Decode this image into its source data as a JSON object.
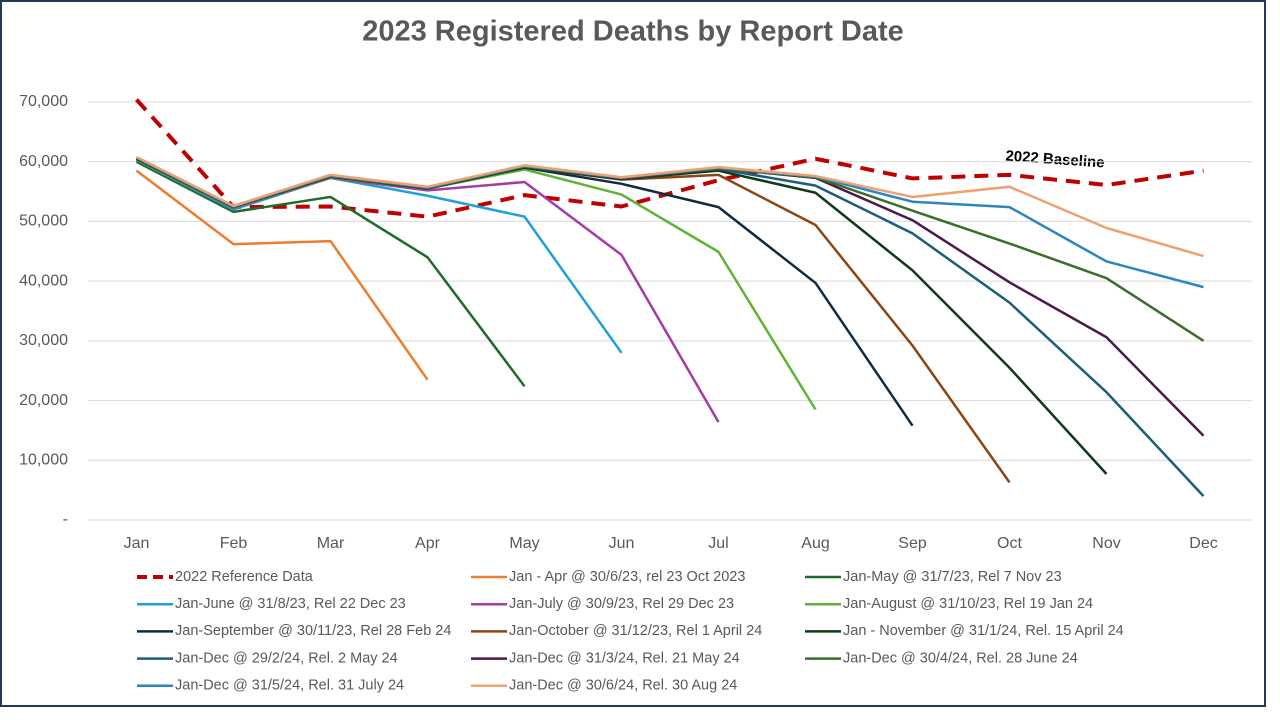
{
  "chart_data": {
    "type": "line",
    "title": "2023 Registered Deaths by Report Date",
    "annotation": "2022 Baseline",
    "categories": [
      "Jan",
      "Feb",
      "Mar",
      "Apr",
      "May",
      "Jun",
      "Jul",
      "Aug",
      "Sep",
      "Oct",
      "Nov",
      "Dec"
    ],
    "ylim": [
      0,
      70000
    ],
    "yticks": [
      {
        "value": 0,
        "label": "-"
      },
      {
        "value": 10000,
        "label": "10,000"
      },
      {
        "value": 20000,
        "label": "20,000"
      },
      {
        "value": 30000,
        "label": "30,000"
      },
      {
        "value": 40000,
        "label": "40,000"
      },
      {
        "value": 50000,
        "label": "50,000"
      },
      {
        "value": 60000,
        "label": "60,000"
      },
      {
        "value": 70000,
        "label": "70,000"
      }
    ],
    "grid": true,
    "legend": "bottom",
    "series": [
      {
        "name": "2022 Reference Data",
        "color": "#c00000",
        "line_style": "dashed",
        "values": [
          70400,
          52400,
          52500,
          50800,
          54400,
          52500,
          56900,
          60500,
          57200,
          57800,
          56100,
          58500
        ]
      },
      {
        "name": "Jan - Apr @ 30/6/23, rel 23 Oct 2023",
        "color": "#ed7d31",
        "values": [
          58500,
          46200,
          46700,
          23500,
          null,
          null,
          null,
          null,
          null,
          null,
          null,
          null
        ]
      },
      {
        "name": "Jan-May @ 31/7/23, Rel 7 Nov 23",
        "color": "#1f6b2c",
        "values": [
          60000,
          51600,
          54100,
          44000,
          22400,
          null,
          null,
          null,
          null,
          null,
          null,
          null
        ]
      },
      {
        "name": "Jan-June @ 31/8/23, Rel 22 Dec 23",
        "color": "#1fa0d8",
        "values": [
          60300,
          52000,
          57300,
          54300,
          50800,
          28000,
          null,
          null,
          null,
          null,
          null,
          null
        ]
      },
      {
        "name": "Jan-July @ 30/9/23, Rel 29 Dec 23",
        "color": "#a43ba8",
        "values": [
          60400,
          52200,
          57300,
          55200,
          56600,
          44400,
          16400,
          null,
          null,
          null,
          null,
          null
        ]
      },
      {
        "name": "Jan-August @ 31/10/23, Rel 19 Jan 24",
        "color": "#5fb336",
        "values": [
          60400,
          52300,
          57400,
          55500,
          58700,
          54500,
          44900,
          18500,
          null,
          null,
          null,
          null
        ]
      },
      {
        "name": "Jan-September @ 30/11/23, Rel 28 Feb 24",
        "color": "#0e2d44",
        "values": [
          60500,
          52400,
          57500,
          55500,
          59000,
          56300,
          52400,
          39700,
          15800,
          null,
          null,
          null
        ]
      },
      {
        "name": "Jan-October @ 31/12/23, Rel 1 April 24",
        "color": "#8c4513",
        "values": [
          60500,
          52400,
          57500,
          55600,
          59100,
          57000,
          57800,
          49400,
          29200,
          6300,
          null,
          null
        ]
      },
      {
        "name": "Jan - November @ 31/1/24, Rel. 15 April 24",
        "color": "#0f3a1a",
        "values": [
          60500,
          52400,
          57500,
          55600,
          59100,
          57100,
          58500,
          54800,
          41800,
          25500,
          7700,
          null
        ]
      },
      {
        "name": "Jan-Dec @ 29/2/24, Rel. 2 May 24",
        "color": "#1b5e7b",
        "values": [
          60600,
          52500,
          57600,
          55600,
          59200,
          57200,
          58800,
          56000,
          48000,
          36400,
          21400,
          4000
        ]
      },
      {
        "name": "Jan-Dec @ 31/3/24, Rel. 21 May 24",
        "color": "#4b1a4a",
        "values": [
          60600,
          52500,
          57600,
          55600,
          59200,
          57200,
          58900,
          57300,
          50200,
          39800,
          30600,
          14100
        ]
      },
      {
        "name": "Jan-Dec @ 30/4/24, Rel. 28 June 24",
        "color": "#3a6e2a",
        "values": [
          60600,
          52500,
          57600,
          55600,
          59200,
          57300,
          58900,
          57400,
          51800,
          46300,
          40500,
          30000
        ]
      },
      {
        "name": "Jan-Dec @ 31/5/24, Rel. 31 July 24",
        "color": "#2e86c1",
        "values": [
          60700,
          52500,
          57700,
          55700,
          59300,
          57300,
          59000,
          57500,
          53300,
          52400,
          43300,
          39000
        ]
      },
      {
        "name": "Jan-Dec @ 30/6/24, Rel. 30 Aug 24",
        "color": "#f0a070",
        "values": [
          60800,
          52600,
          57800,
          55800,
          59400,
          57400,
          59100,
          57600,
          54100,
          55800,
          48900,
          44200
        ]
      }
    ]
  }
}
